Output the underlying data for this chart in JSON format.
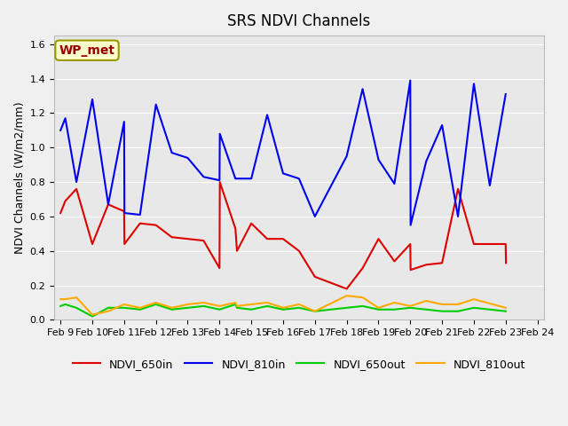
{
  "title": "SRS NDVI Channels",
  "ylabel": "NDVI Channels (W/m2/mm)",
  "annotation_text": "WP_met",
  "ylim": [
    0.0,
    1.65
  ],
  "yticks": [
    0.0,
    0.2,
    0.4,
    0.6,
    0.8,
    1.0,
    1.2,
    1.4,
    1.6
  ],
  "x_labels": [
    "Feb 9",
    "Feb 10",
    "Feb 11",
    "Feb 12",
    "Feb 13",
    "Feb 14",
    "Feb 15",
    "Feb 16",
    "Feb 17",
    "Feb 18",
    "Feb 19",
    "Feb 20",
    "Feb 21",
    "Feb 22",
    "Feb 23",
    "Feb 24"
  ],
  "color_650in": "#dd0000",
  "color_810in": "#0000ee",
  "color_650out": "#00cc00",
  "color_810out": "#ffaa00",
  "legend_labels": [
    "NDVI_650in",
    "NDVI_810in",
    "NDVI_650out",
    "NDVI_810out"
  ],
  "x_650in": [
    0.0,
    0.15,
    0.5,
    1.0,
    1.5,
    2.0,
    2.01,
    2.5,
    3.0,
    3.5,
    4.0,
    4.5,
    5.0,
    5.01,
    5.5,
    5.55,
    6.0,
    6.5,
    7.0,
    7.5,
    8.0,
    9.0,
    9.5,
    10.0,
    10.5,
    11.0,
    11.01,
    11.5,
    12.0,
    12.5,
    13.0,
    14.0,
    14.01
  ],
  "y_650in": [
    0.62,
    0.69,
    0.76,
    0.44,
    0.67,
    0.63,
    0.44,
    0.56,
    0.55,
    0.48,
    0.47,
    0.46,
    0.3,
    0.8,
    0.53,
    0.4,
    0.56,
    0.47,
    0.47,
    0.4,
    0.25,
    0.18,
    0.3,
    0.47,
    0.34,
    0.44,
    0.29,
    0.32,
    0.33,
    0.76,
    0.44,
    0.44,
    0.33
  ],
  "x_810in": [
    0.0,
    0.15,
    0.5,
    1.0,
    1.5,
    2.0,
    2.01,
    2.5,
    3.0,
    3.5,
    4.0,
    4.5,
    5.0,
    5.01,
    5.5,
    5.55,
    6.0,
    6.5,
    7.0,
    7.5,
    8.0,
    9.0,
    9.5,
    10.0,
    10.5,
    11.0,
    11.01,
    11.5,
    12.0,
    12.5,
    13.0,
    13.5,
    14.0
  ],
  "y_810in": [
    1.1,
    1.17,
    0.8,
    1.28,
    0.67,
    1.15,
    0.62,
    0.61,
    1.25,
    0.97,
    0.94,
    0.83,
    0.81,
    1.08,
    0.82,
    0.82,
    0.82,
    1.19,
    0.85,
    0.82,
    0.6,
    0.95,
    1.34,
    0.93,
    0.79,
    1.39,
    0.55,
    0.92,
    1.13,
    0.6,
    1.37,
    0.78,
    1.31
  ],
  "x_650out": [
    0.0,
    0.15,
    0.5,
    1.0,
    1.5,
    2.0,
    2.5,
    3.0,
    3.5,
    4.0,
    4.5,
    5.0,
    5.5,
    5.55,
    6.0,
    6.5,
    7.0,
    7.5,
    8.0,
    9.0,
    9.5,
    10.0,
    10.5,
    11.0,
    11.5,
    12.0,
    12.5,
    13.0,
    14.0
  ],
  "y_650out": [
    0.08,
    0.09,
    0.07,
    0.02,
    0.07,
    0.07,
    0.06,
    0.09,
    0.06,
    0.07,
    0.08,
    0.06,
    0.09,
    0.07,
    0.06,
    0.08,
    0.06,
    0.07,
    0.05,
    0.07,
    0.08,
    0.06,
    0.06,
    0.07,
    0.06,
    0.05,
    0.05,
    0.07,
    0.05
  ],
  "x_810out": [
    0.0,
    0.15,
    0.5,
    1.0,
    1.5,
    2.0,
    2.5,
    3.0,
    3.5,
    4.0,
    4.5,
    5.0,
    5.5,
    5.55,
    6.0,
    6.5,
    7.0,
    7.5,
    8.0,
    9.0,
    9.5,
    10.0,
    10.5,
    11.0,
    11.5,
    12.0,
    12.5,
    13.0,
    14.0
  ],
  "y_810out": [
    0.12,
    0.12,
    0.13,
    0.03,
    0.05,
    0.09,
    0.07,
    0.1,
    0.07,
    0.09,
    0.1,
    0.08,
    0.1,
    0.08,
    0.09,
    0.1,
    0.07,
    0.09,
    0.05,
    0.14,
    0.13,
    0.07,
    0.1,
    0.08,
    0.11,
    0.09,
    0.09,
    0.12,
    0.07
  ]
}
